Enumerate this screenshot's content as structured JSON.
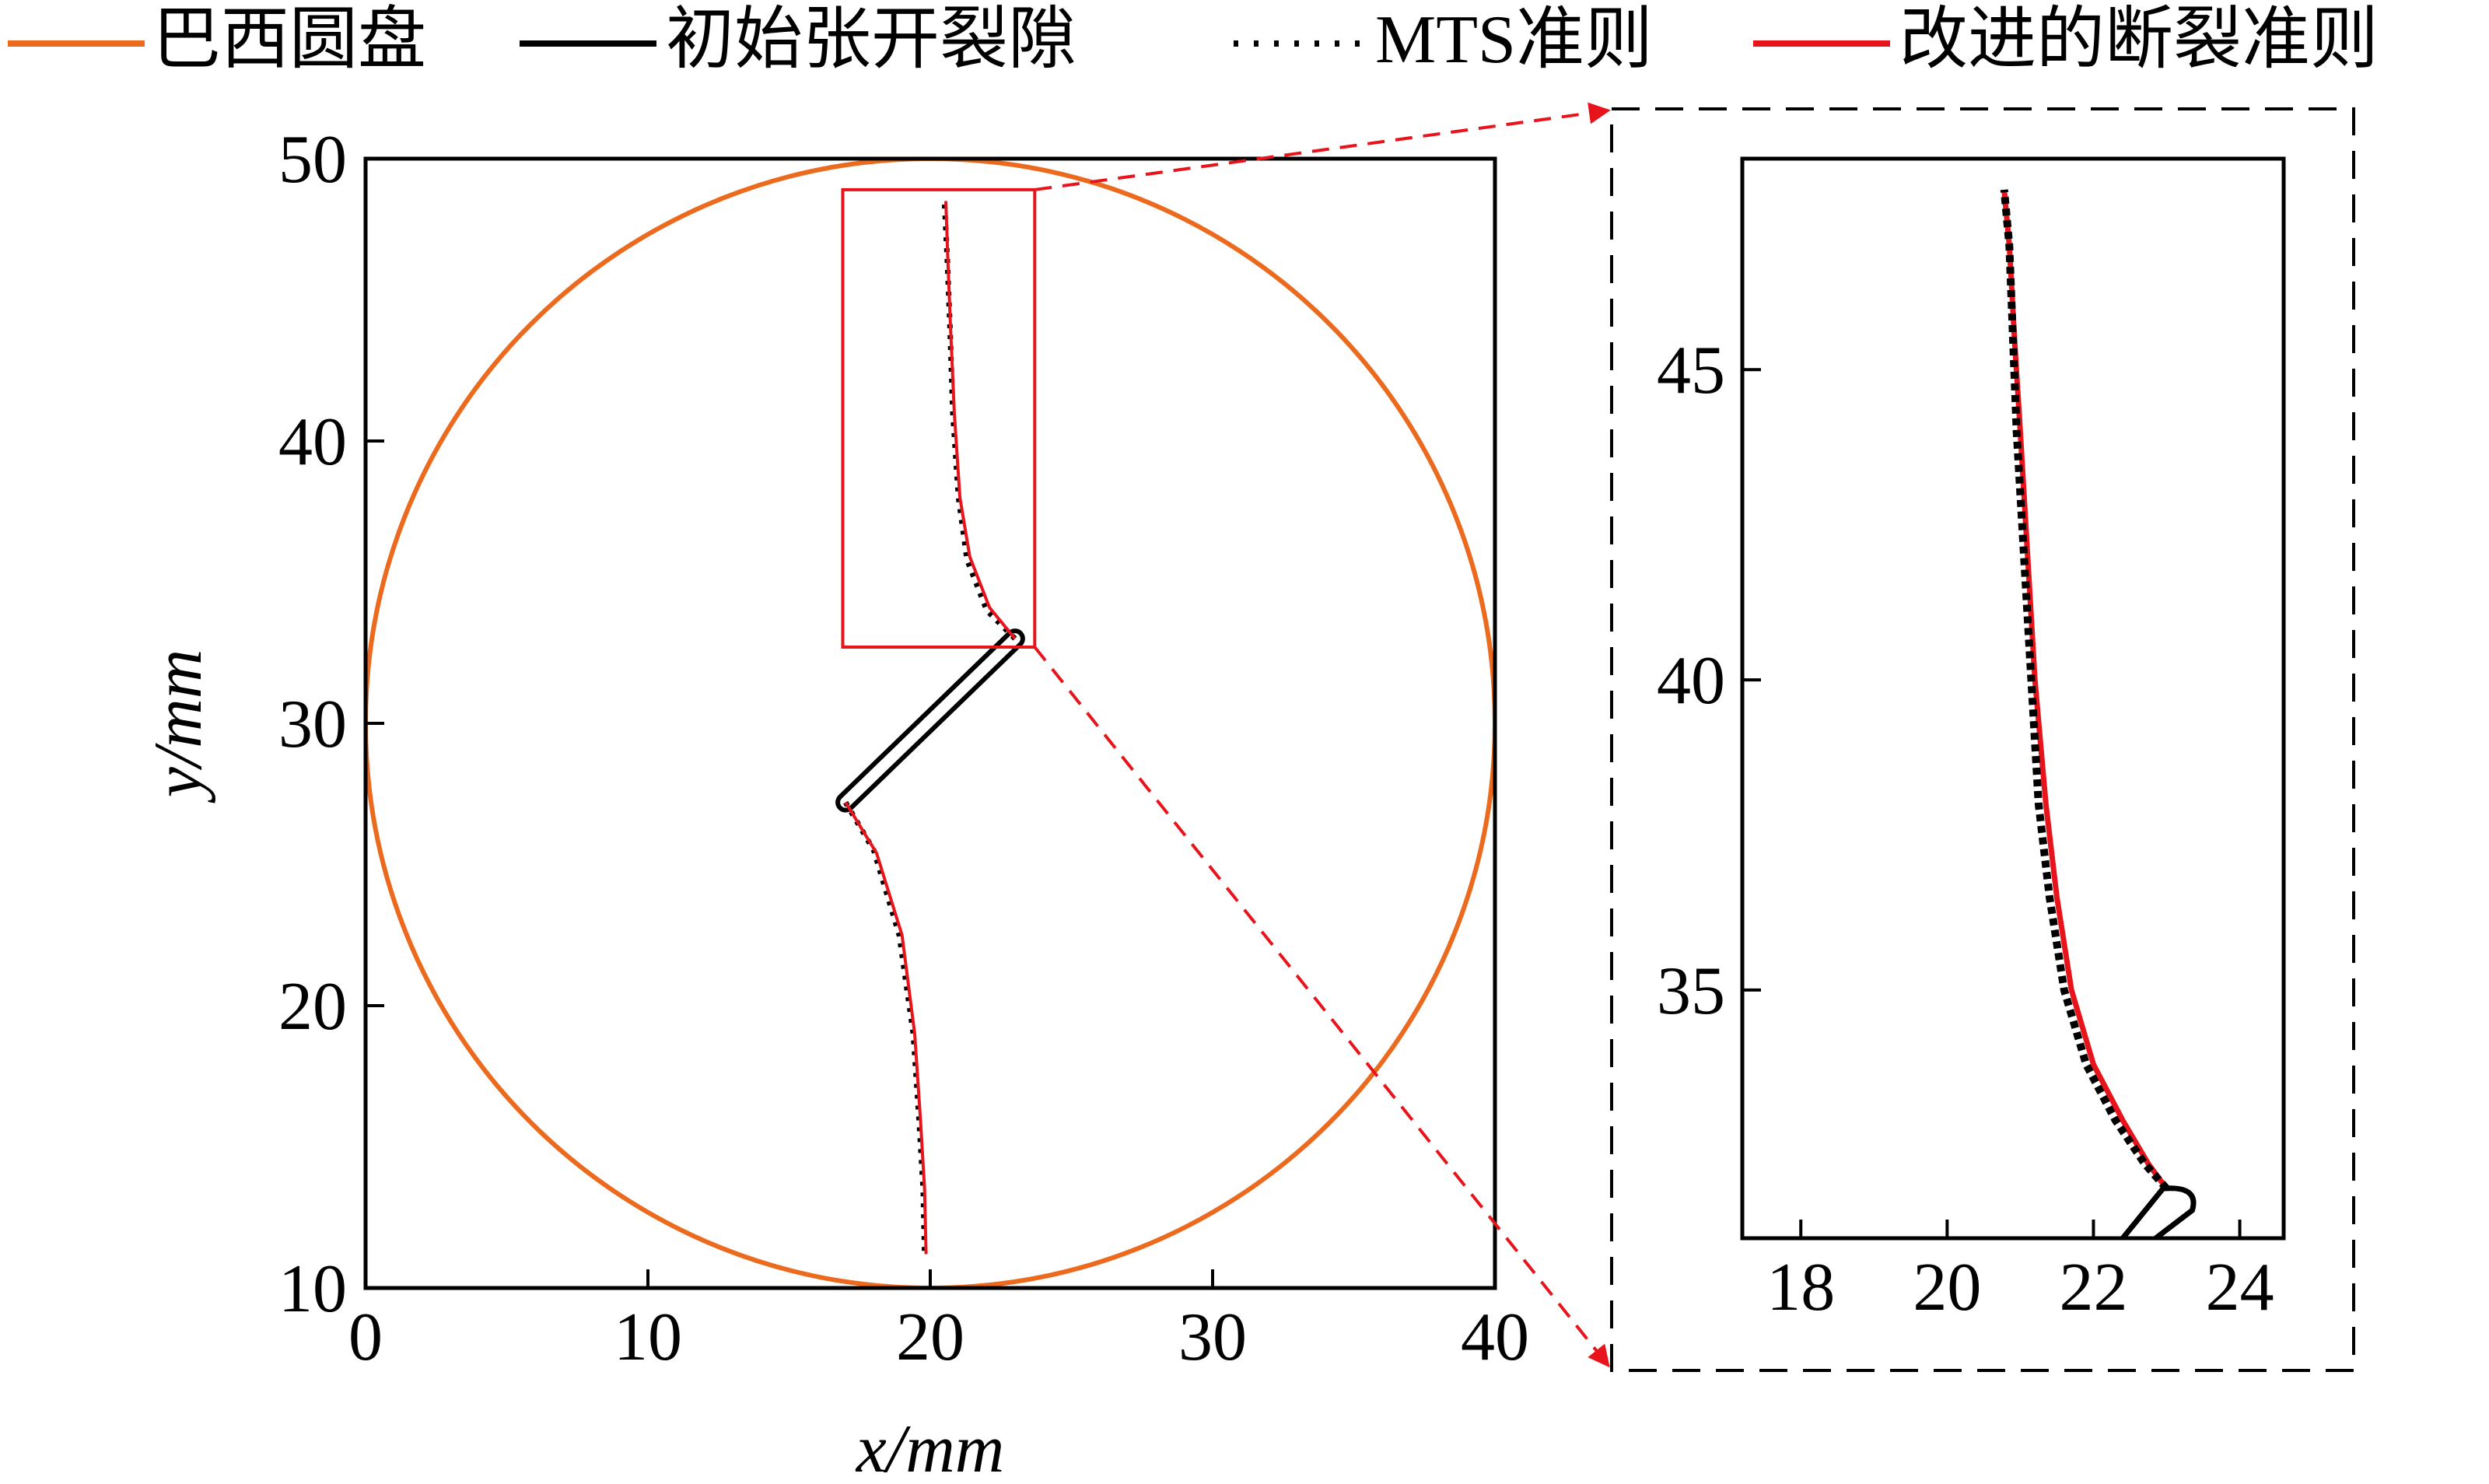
{
  "legend": {
    "placement": "top",
    "entries": [
      {
        "label": "巴西圆盘",
        "color": "#ec6a1e",
        "style": "solid"
      },
      {
        "label": "初始张开裂隙",
        "color": "#000000",
        "style": "solid"
      },
      {
        "label": "MTS准则",
        "color": "#000000",
        "style": "dotted"
      },
      {
        "label": "改进的断裂准则",
        "color": "#e8141b",
        "style": "solid"
      }
    ]
  },
  "colors": {
    "disk": "#ec6a1e",
    "flaw": "#000000",
    "mts": "#000000",
    "improved": "#e8141b",
    "zoom_box": "#e8141b",
    "arrow": "#e8141b"
  },
  "chart_data": [
    {
      "type": "line",
      "title": "",
      "xlabel": "x/mm",
      "ylabel": "y/mm",
      "xlim": [
        0,
        40
      ],
      "ylim": [
        10,
        50
      ],
      "xticks": [
        0,
        10,
        20,
        30,
        40
      ],
      "yticks": [
        10,
        20,
        30,
        40,
        50
      ],
      "disk": {
        "center": [
          20,
          30
        ],
        "radius": 20
      },
      "initial_flaw": {
        "tip_lower": [
          17.0,
          27.2
        ],
        "tip_upper": [
          23.0,
          33.0
        ],
        "opening_mm": 0.6
      },
      "zoom_region": {
        "x": [
          16.9,
          23.7
        ],
        "y": [
          32.7,
          48.9
        ]
      },
      "series": [
        {
          "name": "MTS准则",
          "branch": "upper",
          "points": [
            [
              23.0,
              33.0
            ],
            [
              22.0,
              34.0
            ],
            [
              21.3,
              35.8
            ],
            [
              21.0,
              38.0
            ],
            [
              20.8,
              41.0
            ],
            [
              20.7,
              44.0
            ],
            [
              20.6,
              46.5
            ],
            [
              20.5,
              48.5
            ]
          ]
        },
        {
          "name": "改进的断裂准则",
          "branch": "upper",
          "points": [
            [
              23.0,
              33.0
            ],
            [
              22.1,
              34.1
            ],
            [
              21.4,
              35.9
            ],
            [
              21.05,
              38.0
            ],
            [
              20.85,
              41.0
            ],
            [
              20.72,
              44.0
            ],
            [
              20.62,
              46.5
            ],
            [
              20.55,
              48.5
            ]
          ]
        },
        {
          "name": "MTS准则",
          "branch": "lower",
          "points": [
            [
              17.0,
              27.2
            ],
            [
              18.0,
              25.5
            ],
            [
              18.9,
              22.5
            ],
            [
              19.4,
              19.0
            ],
            [
              19.6,
              16.0
            ],
            [
              19.75,
              13.5
            ],
            [
              19.8,
              11.2
            ]
          ]
        },
        {
          "name": "改进的断裂准则",
          "branch": "lower",
          "points": [
            [
              17.0,
              27.2
            ],
            [
              18.1,
              25.4
            ],
            [
              19.0,
              22.5
            ],
            [
              19.45,
              19.0
            ],
            [
              19.65,
              16.0
            ],
            [
              19.8,
              13.5
            ],
            [
              19.85,
              11.2
            ]
          ]
        }
      ]
    },
    {
      "type": "line",
      "title": "",
      "xlabel": "",
      "ylabel": "",
      "xlim": [
        17.2,
        24.6
      ],
      "ylim": [
        31.0,
        48.4
      ],
      "xticks": [
        18,
        20,
        22,
        24
      ],
      "yticks": [
        35,
        40,
        45
      ],
      "series": [
        {
          "name": "MTS准则",
          "points": [
            [
              23.0,
              31.8
            ],
            [
              22.7,
              32.2
            ],
            [
              22.3,
              32.9
            ],
            [
              21.9,
              33.8
            ],
            [
              21.6,
              35.0
            ],
            [
              21.4,
              36.5
            ],
            [
              21.25,
              38.0
            ],
            [
              21.15,
              40.0
            ],
            [
              21.05,
              42.0
            ],
            [
              20.95,
              44.0
            ],
            [
              20.9,
              45.5
            ],
            [
              20.85,
              47.0
            ],
            [
              20.78,
              47.9
            ]
          ]
        },
        {
          "name": "改进的断裂准则",
          "points": [
            [
              23.0,
              31.8
            ],
            [
              22.75,
              32.2
            ],
            [
              22.4,
              32.9
            ],
            [
              22.0,
              33.8
            ],
            [
              21.7,
              35.0
            ],
            [
              21.5,
              36.5
            ],
            [
              21.35,
              38.0
            ],
            [
              21.2,
              40.0
            ],
            [
              21.1,
              42.0
            ],
            [
              21.0,
              44.0
            ],
            [
              20.92,
              45.5
            ],
            [
              20.85,
              47.0
            ],
            [
              20.78,
              47.9
            ]
          ]
        }
      ],
      "initial_flaw_tip": {
        "x": [
          22.4,
          23.4
        ],
        "y": [
          31.0,
          31.8
        ]
      }
    }
  ]
}
